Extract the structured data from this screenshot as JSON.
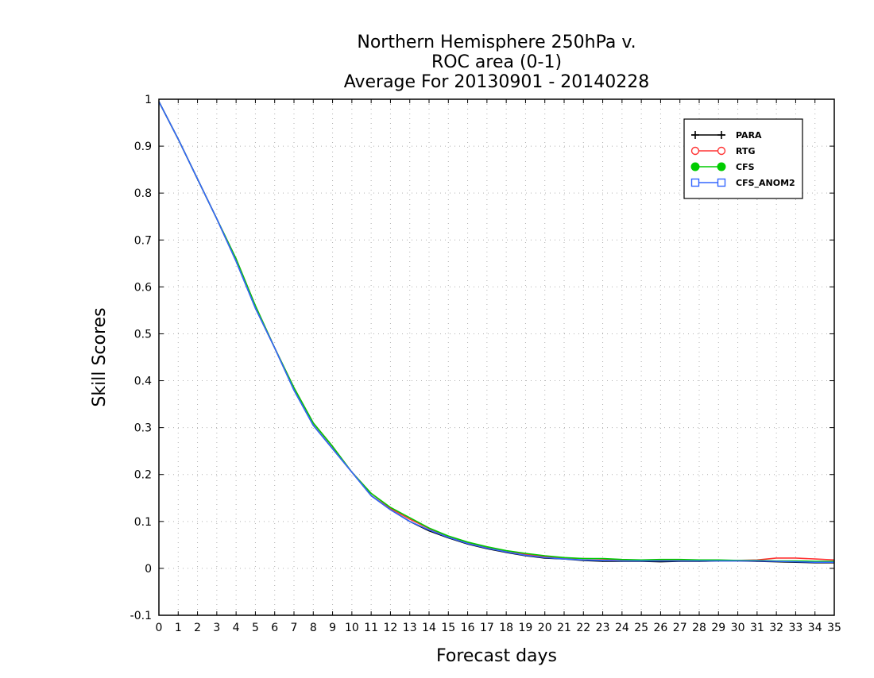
{
  "chart_data": {
    "type": "line",
    "title": [
      "Northern Hemisphere 250hPa v.",
      "ROC area (0-1)",
      "Average For 20130901 - 20140228"
    ],
    "xlabel": "Forecast days",
    "ylabel": "Skill Scores",
    "xlim": [
      0,
      35
    ],
    "ylim": [
      -0.1,
      1
    ],
    "x_ticks": [
      0,
      1,
      2,
      3,
      4,
      5,
      6,
      7,
      8,
      9,
      10,
      11,
      12,
      13,
      14,
      15,
      16,
      17,
      18,
      19,
      20,
      21,
      22,
      23,
      24,
      25,
      26,
      27,
      28,
      29,
      30,
      31,
      32,
      33,
      34,
      35
    ],
    "y_ticks": [
      -0.1,
      0,
      0.1,
      0.2,
      0.3,
      0.4,
      0.5,
      0.6,
      0.7,
      0.8,
      0.9,
      1
    ],
    "y_tick_labels": [
      "-0.1",
      "0",
      "0.1",
      "0.2",
      "0.3",
      "0.4",
      "0.5",
      "0.6",
      "0.7",
      "0.8",
      "0.9",
      "1"
    ],
    "grid": true,
    "legend_position": "top-right",
    "x": [
      0,
      1,
      2,
      3,
      4,
      5,
      6,
      7,
      8,
      9,
      10,
      11,
      12,
      13,
      14,
      15,
      16,
      17,
      18,
      19,
      20,
      21,
      22,
      23,
      24,
      25,
      26,
      27,
      28,
      29,
      30,
      31,
      32,
      33,
      34,
      35
    ],
    "series": [
      {
        "name": "PARA",
        "color": "#000000",
        "marker": "plus",
        "values": [
          0.995,
          0.915,
          0.83,
          0.745,
          0.655,
          0.555,
          0.47,
          0.38,
          0.305,
          0.255,
          0.205,
          0.155,
          0.125,
          0.1,
          0.08,
          0.065,
          0.052,
          0.042,
          0.034,
          0.027,
          0.022,
          0.02,
          0.017,
          0.015,
          0.015,
          0.015,
          0.014,
          0.015,
          0.015,
          0.016,
          0.016,
          0.015,
          0.014,
          0.013,
          0.012,
          0.012
        ]
      },
      {
        "name": "RTG",
        "color": "#ff3333",
        "marker": "circle-open",
        "values": [
          0.995,
          0.915,
          0.83,
          0.745,
          0.66,
          0.56,
          0.47,
          0.385,
          0.31,
          0.26,
          0.205,
          0.16,
          0.128,
          0.105,
          0.085,
          0.068,
          0.055,
          0.045,
          0.037,
          0.03,
          0.025,
          0.022,
          0.021,
          0.02,
          0.018,
          0.018,
          0.018,
          0.017,
          0.017,
          0.017,
          0.017,
          0.018,
          0.022,
          0.022,
          0.02,
          0.018
        ]
      },
      {
        "name": "CFS",
        "color": "#00cc00",
        "marker": "circle-filled",
        "values": [
          0.995,
          0.915,
          0.83,
          0.745,
          0.66,
          0.56,
          0.47,
          0.385,
          0.31,
          0.26,
          0.205,
          0.16,
          0.13,
          0.108,
          0.086,
          0.069,
          0.056,
          0.046,
          0.038,
          0.032,
          0.027,
          0.023,
          0.021,
          0.021,
          0.019,
          0.018,
          0.019,
          0.019,
          0.018,
          0.018,
          0.017,
          0.017,
          0.016,
          0.016,
          0.015,
          0.015
        ]
      },
      {
        "name": "CFS_ANOM2",
        "color": "#3366ff",
        "marker": "square-open",
        "values": [
          0.995,
          0.915,
          0.83,
          0.745,
          0.655,
          0.555,
          0.47,
          0.38,
          0.305,
          0.255,
          0.205,
          0.155,
          0.125,
          0.1,
          0.082,
          0.066,
          0.053,
          0.043,
          0.035,
          0.028,
          0.023,
          0.02,
          0.018,
          0.017,
          0.016,
          0.016,
          0.016,
          0.016,
          0.016,
          0.016,
          0.016,
          0.016,
          0.015,
          0.014,
          0.013,
          0.013
        ]
      }
    ]
  }
}
